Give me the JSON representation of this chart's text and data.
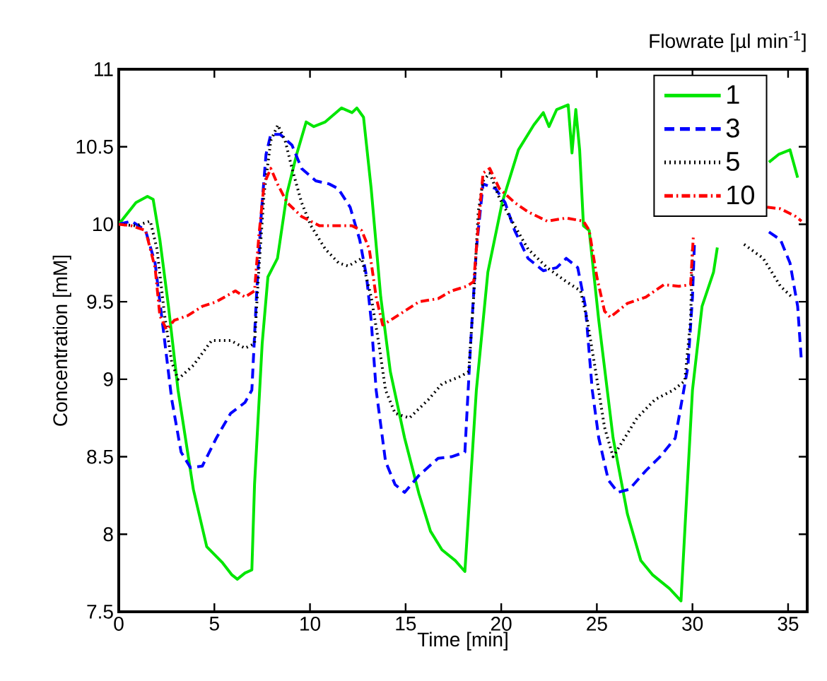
{
  "chart_data": {
    "type": "line",
    "xlabel": "Time [min]",
    "ylabel": "Concentration [mM]",
    "legend_title": "Flowrate [µl min$^{-1}$]",
    "xlim": [
      0,
      36
    ],
    "xticks": [
      0,
      5,
      10,
      15,
      20,
      25,
      30,
      35
    ],
    "ylim": [
      7.5,
      11
    ],
    "yticks": [
      7.5,
      8,
      8.5,
      9,
      9.5,
      10,
      10.5,
      11
    ],
    "grid": false,
    "legend": "top right",
    "marker": "none",
    "series": [
      {
        "name": "1",
        "color": "#00e600",
        "line_style": "solid",
        "x": [
          0,
          0.9,
          1.5,
          1.8,
          2.15,
          2.6,
          3.1,
          3.9,
          4.6,
          5.4,
          5.9,
          6.2,
          6.6,
          6.96,
          7.1,
          7.5,
          7.8,
          8.3,
          8.8,
          9.3,
          9.8,
          10.2,
          10.8,
          11.65,
          12.2,
          12.45,
          12.8,
          13.2,
          13.7,
          14.2,
          14.95,
          15.7,
          16.3,
          16.9,
          17.6,
          18.1,
          18.7,
          19.3,
          20.05,
          20.9,
          21.7,
          22.2,
          22.5,
          22.9,
          23.5,
          23.7,
          23.9,
          24.1,
          24.3,
          24.6,
          25.1,
          25.85,
          26.6,
          27.3,
          27.9,
          28.8,
          29.4,
          30,
          30.5,
          31.1,
          31.3,
          32.5,
          34.0,
          34.5,
          35.1,
          35.5
        ],
        "values": [
          10,
          10.14,
          10.18,
          10.16,
          9.9,
          9.47,
          8.93,
          8.29,
          7.92,
          7.82,
          7.74,
          7.71,
          7.75,
          7.77,
          8.32,
          9.23,
          9.66,
          9.78,
          10.2,
          10.45,
          10.66,
          10.63,
          10.66,
          10.75,
          10.72,
          10.75,
          10.69,
          10.23,
          9.53,
          9.05,
          8.62,
          8.26,
          8.02,
          7.9,
          7.83,
          7.76,
          8.93,
          9.69,
          10.14,
          10.48,
          10.64,
          10.72,
          10.63,
          10.74,
          10.77,
          10.46,
          10.74,
          10.48,
          9.99,
          9.96,
          9.38,
          8.62,
          8.13,
          7.83,
          7.74,
          7.65,
          7.57,
          8.93,
          9.47,
          9.69,
          9.85,
          null,
          10.4,
          10.45,
          10.48,
          10.3
        ]
      },
      {
        "name": "3",
        "color": "#0000ff",
        "line_style": "dashed",
        "x": [
          0,
          0.67,
          1.4,
          1.9,
          2.27,
          2.77,
          3.26,
          3.75,
          4.37,
          5.1,
          5.85,
          6.6,
          6.96,
          7.2,
          7.46,
          7.7,
          7.95,
          8.44,
          9.06,
          9.56,
          10.3,
          11.0,
          11.47,
          12.1,
          12.6,
          12.96,
          13.2,
          13.46,
          13.95,
          14.45,
          14.95,
          15.7,
          16.7,
          17.4,
          18.1,
          18.4,
          18.7,
          19.05,
          19.7,
          20.2,
          20.7,
          21.4,
          22.2,
          22.9,
          23.4,
          24.0,
          24.4,
          24.76,
          25.1,
          25.6,
          26.1,
          26.7,
          27.56,
          28.3,
          29.1,
          29.76,
          30.0,
          30.1,
          32,
          34.0,
          34.6,
          35.1,
          35.5,
          35.7
        ],
        "values": [
          10,
          10.02,
          9.96,
          9.75,
          9.38,
          8.87,
          8.53,
          8.43,
          8.44,
          8.62,
          8.78,
          8.85,
          8.93,
          9.53,
          10.08,
          10.45,
          10.58,
          10.58,
          10.51,
          10.36,
          10.28,
          10.26,
          10.23,
          10.11,
          9.9,
          9.66,
          9.38,
          8.93,
          8.47,
          8.32,
          8.27,
          8.38,
          8.49,
          8.5,
          8.53,
          9.23,
          9.84,
          10.26,
          10.23,
          10.14,
          9.96,
          9.78,
          9.7,
          9.72,
          9.78,
          9.72,
          9.47,
          8.93,
          8.62,
          8.35,
          8.27,
          8.29,
          8.41,
          8.5,
          8.62,
          9.08,
          9.53,
          9.87,
          null,
          9.95,
          9.9,
          9.75,
          9.47,
          9.11
        ]
      },
      {
        "name": "5",
        "color": "#000000",
        "line_style": "dotted",
        "x": [
          0,
          0.9,
          1.65,
          2.0,
          2.4,
          2.77,
          3.1,
          3.9,
          4.86,
          5.85,
          6.6,
          7.1,
          7.3,
          7.6,
          7.95,
          8.32,
          8.7,
          9.06,
          9.56,
          10.05,
          10.8,
          11.5,
          12.0,
          12.7,
          13.2,
          13.6,
          13.95,
          14.45,
          15.2,
          16.2,
          16.9,
          17.9,
          18.3,
          18.56,
          18.8,
          19.05,
          19.4,
          19.9,
          20.7,
          21.4,
          22.4,
          23.4,
          24.15,
          24.5,
          24.9,
          25.4,
          25.85,
          26.3,
          27.1,
          28.05,
          29.0,
          29.6,
          29.9,
          30.0,
          31,
          32.7,
          33.7,
          34.6,
          35.2
        ],
        "values": [
          10,
          9.99,
          10.02,
          9.84,
          9.41,
          9.11,
          9.0,
          9.09,
          9.25,
          9.25,
          9.2,
          9.23,
          9.66,
          10.2,
          10.54,
          10.64,
          10.54,
          10.36,
          10.14,
          9.99,
          9.84,
          9.75,
          9.73,
          9.78,
          9.53,
          9.23,
          8.93,
          8.78,
          8.75,
          8.87,
          8.97,
          9.02,
          9.05,
          9.53,
          10.08,
          10.28,
          10.33,
          10.17,
          9.99,
          9.84,
          9.72,
          9.63,
          9.57,
          9.38,
          9.08,
          8.69,
          8.5,
          8.59,
          8.75,
          8.87,
          8.93,
          8.99,
          9.38,
          9.84,
          null,
          9.87,
          9.78,
          9.6,
          9.53
        ]
      },
      {
        "name": "10",
        "color": "#ff0000",
        "line_style": "dashdot",
        "x": [
          0,
          0.67,
          1.4,
          1.9,
          2.15,
          2.5,
          2.9,
          3.6,
          4.37,
          5.1,
          6.1,
          6.6,
          7.1,
          7.33,
          7.6,
          7.95,
          8.3,
          8.8,
          9.56,
          10.5,
          11.3,
          12.2,
          12.7,
          13.1,
          13.46,
          13.8,
          14.2,
          14.95,
          15.7,
          16.7,
          17.4,
          18.2,
          18.56,
          18.8,
          19.05,
          19.4,
          19.9,
          20.7,
          21.4,
          22.4,
          23.4,
          24.3,
          24.6,
          25.0,
          25.4,
          25.7,
          26.6,
          27.56,
          28.5,
          29.3,
          29.9,
          30.05,
          32,
          33.9,
          34.6,
          35.4,
          35.7
        ],
        "values": [
          10,
          9.99,
          9.96,
          9.72,
          9.41,
          9.32,
          9.38,
          9.41,
          9.47,
          9.5,
          9.57,
          9.53,
          9.57,
          9.93,
          10.26,
          10.36,
          10.26,
          10.14,
          10.05,
          9.99,
          9.99,
          9.99,
          9.96,
          9.84,
          9.53,
          9.35,
          9.38,
          9.44,
          9.5,
          9.52,
          9.57,
          9.6,
          9.63,
          9.99,
          10.33,
          10.36,
          10.23,
          10.14,
          10.08,
          10.02,
          10.04,
          10.02,
          9.96,
          9.66,
          9.44,
          9.4,
          9.49,
          9.53,
          9.61,
          9.6,
          9.61,
          9.93,
          null,
          10.11,
          10.1,
          10.05,
          10.02
        ]
      }
    ]
  }
}
